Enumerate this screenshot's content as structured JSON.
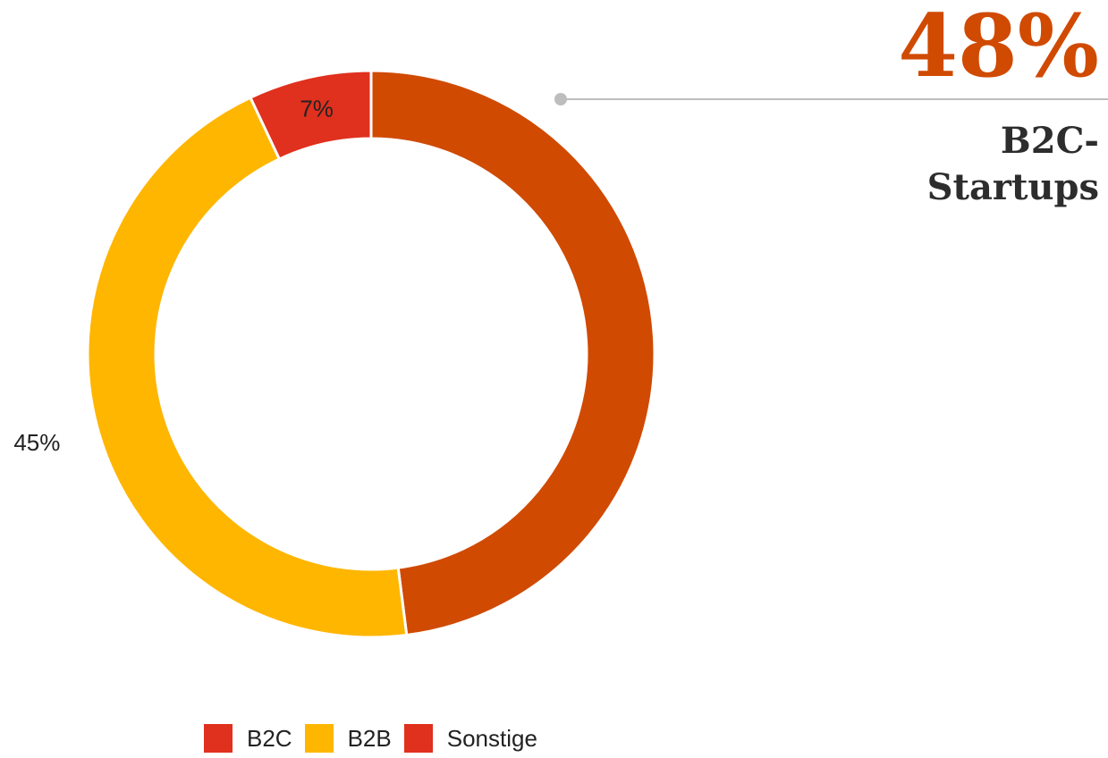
{
  "chart_data": {
    "type": "pie",
    "variant": "donut",
    "slices": [
      {
        "name": "B2C",
        "value": 48,
        "label": "",
        "color": "#d04a02"
      },
      {
        "name": "B2B",
        "value": 45,
        "label": "45%",
        "color": "#ffb600"
      },
      {
        "name": "Sonstige",
        "value": 7,
        "label": "7%",
        "color": "#e0301e"
      }
    ],
    "legend": {
      "placement": "bottom",
      "items": [
        {
          "name": "B2C",
          "color": "#e0301e"
        },
        {
          "name": "B2B",
          "color": "#ffb600"
        },
        {
          "name": "Sonstige",
          "color": "#e0301e"
        }
      ]
    }
  },
  "callout": {
    "value": "48%",
    "caption": "B2C-Startups",
    "value_color": "#d04a02",
    "line_color": "#bdbdbd"
  }
}
